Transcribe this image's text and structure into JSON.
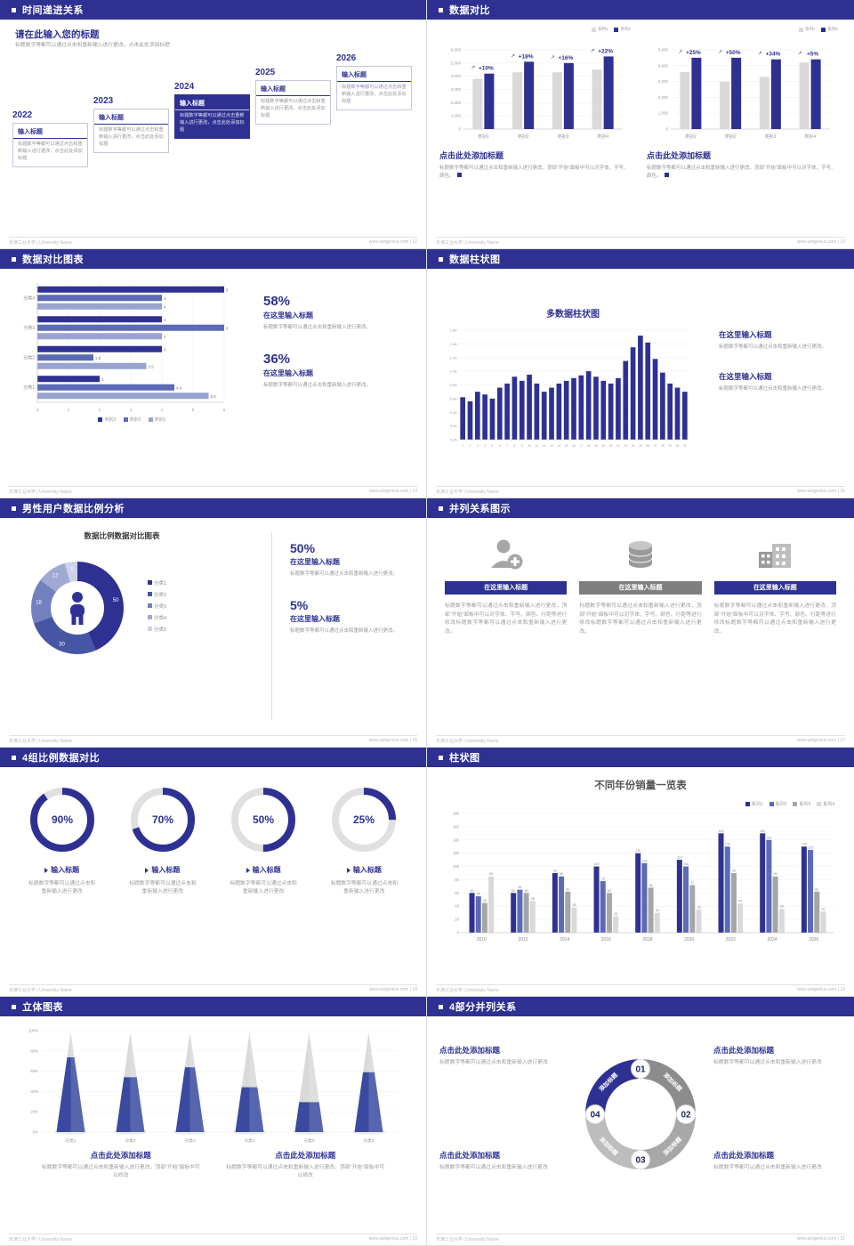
{
  "colors": {
    "primary": "#2e3192",
    "navy_dark": "#1f2a63",
    "mid_blue": "#5b6bb5",
    "light_blue": "#98a3cf",
    "gray_bar": "#d9d9d9",
    "mid_gray": "#a6a6a6",
    "cone_blue": "#3a4aa0",
    "pie_palette": [
      "#2e3192",
      "#4656a5",
      "#7280bd",
      "#9fa9d2",
      "#ccd2e8"
    ],
    "ring4_palette": [
      "#2e3192",
      "#8c8c8c",
      "#a8a8a8",
      "#bdbdbd"
    ]
  },
  "footer": {
    "org": "天津工业大学 | University Name",
    "site": "www.aotgenius.com",
    "sep": "|"
  },
  "slide1": {
    "page": "12",
    "title": "时间递进关系",
    "heading": "请在此输入您的标题",
    "desc": "标题数字等都可以通过点击和重新输入进行更改，点击此处添加标题",
    "items": [
      {
        "year": "2022",
        "label": "输入标题",
        "text": "标题数字等都可以通过点击和重新输入进行更改，点击此处添加标题"
      },
      {
        "year": "2023",
        "label": "输入标题",
        "text": "标题数字等都可以通过点击和重新输入进行更改，点击此处添加标题"
      },
      {
        "year": "2024",
        "label": "输入标题",
        "text": "标题数字等都可以通过点击重新输入进行更改，点击此处添加标题"
      },
      {
        "year": "2025",
        "label": "输入标题",
        "text": "标题数字等都可以通过点击和重新输入进行更改，点击此处添加标题"
      },
      {
        "year": "2026",
        "label": "输入标题",
        "text": "标题数字等都可以通过点击和重新输入进行更改，点击此处添加标题"
      }
    ]
  },
  "slide2": {
    "page": "13",
    "title": "数据对比",
    "chart_data": [
      {
        "type": "bar",
        "legend": [
          "系列1",
          "系列2"
        ],
        "categories": [
          "类别1",
          "类别2",
          "类别3",
          "类别4"
        ],
        "series": [
          {
            "name": "系列1",
            "values": [
              3800,
              4300,
              4300,
              4500
            ]
          },
          {
            "name": "系列2",
            "values": [
              4200,
              5100,
              5000,
              5500
            ]
          }
        ],
        "labels": [
          "+10%",
          "+18%",
          "+16%",
          "+22%"
        ],
        "ylim": [
          0,
          6000
        ],
        "yticks": [
          "6,000",
          "5,000",
          "4,000",
          "3,000",
          "2,000",
          "1,000",
          "0"
        ]
      },
      {
        "type": "bar",
        "legend": [
          "系列1",
          "系列2"
        ],
        "categories": [
          "类别1",
          "类别2",
          "类别3",
          "类别4"
        ],
        "series": [
          {
            "name": "系列1",
            "values": [
              3600,
              3000,
              3300,
              4200
            ]
          },
          {
            "name": "系列2",
            "values": [
              4500,
              4500,
              4400,
              4400
            ]
          }
        ],
        "labels": [
          "+25%",
          "+50%",
          "+34%",
          "+5%"
        ],
        "ylim": [
          0,
          5000
        ],
        "yticks": [
          "5,000",
          "4,000",
          "3,000",
          "2,000",
          "1,000",
          "0"
        ]
      }
    ],
    "blocks": [
      {
        "heading": "点击此处添加标题",
        "desc": "标题数字等都可以通过点击和重新输入进行更改，顶部“开始”面板中可以对字体、字号、颜色。"
      },
      {
        "heading": "点击此处添加标题",
        "desc": "标题数字等都可以通过点击和重新输入进行更改，顶部“开始”面板中可以对字体、字号、颜色。"
      }
    ]
  },
  "slide3": {
    "page": "14",
    "title": "数据对比图表",
    "chart": {
      "type": "bar-horizontal",
      "categories": [
        "分类4",
        "分类3",
        "分类2",
        "分类1"
      ],
      "series": [
        {
          "name": "类别3",
          "values": [
            6,
            4,
            4,
            2
          ]
        },
        {
          "name": "类别2",
          "values": [
            4,
            6,
            1.8,
            4.4
          ]
        },
        {
          "name": "类别1",
          "values": [
            4,
            4,
            3.5,
            5.5
          ]
        }
      ],
      "xlim": [
        0,
        6
      ],
      "xticks": [
        "0",
        "1",
        "2",
        "3",
        "4",
        "5",
        "6"
      ]
    },
    "stats": [
      {
        "pct": "58%",
        "heading": "在这里输入标题",
        "desc": "标题数字等都可以通过点击和重新输入进行更改。"
      },
      {
        "pct": "36%",
        "heading": "在这里输入标题",
        "desc": "标题数字等都可以通过点击和重新输入进行更改。"
      }
    ]
  },
  "slide4": {
    "page": "15",
    "title": "数据柱状图",
    "chart": {
      "type": "bar",
      "title": "多数据柱状图",
      "x": [
        "1",
        "2",
        "3",
        "4",
        "5",
        "6",
        "7",
        "8",
        "9",
        "10",
        "11",
        "12",
        "13",
        "14",
        "15",
        "16",
        "17",
        "18",
        "19",
        "20",
        "21",
        "22",
        "23",
        "24",
        "25",
        "26",
        "27",
        "28",
        "29",
        "30",
        "31"
      ],
      "values": [
        620,
        560,
        700,
        660,
        600,
        760,
        820,
        920,
        860,
        950,
        820,
        700,
        760,
        820,
        860,
        900,
        940,
        1000,
        920,
        860,
        820,
        900,
        1150,
        1350,
        1520,
        1420,
        1180,
        980,
        820,
        760,
        700
      ],
      "ylim": [
        0,
        1600
      ],
      "yticks": [
        "1.6K",
        "1.4K",
        "1.2K",
        "1.0K",
        "0.8K",
        "0.6K",
        "0.4K",
        "0.2K",
        "0.0K"
      ]
    },
    "blocks": [
      {
        "heading": "在这里输入标题",
        "desc": "标题数字等都可以通过点击和重新输入进行更改。"
      },
      {
        "heading": "在这里输入标题",
        "desc": "标题数字等都可以通过点击和重新输入进行更改。"
      }
    ]
  },
  "slide5": {
    "page": "16",
    "title": "男性用户数据比例分析",
    "chart_title": "数据比例数据对比图表",
    "chart": {
      "type": "pie",
      "labels": [
        "分类1",
        "分类2",
        "分类3",
        "分类4",
        "分类5"
      ],
      "values": [
        50,
        30,
        18,
        12,
        5
      ]
    },
    "stats": [
      {
        "pct": "50%",
        "heading": "在这里输入标题",
        "desc": "标题数字等都可以通过点击和重新输入进行更改。"
      },
      {
        "pct": "5%",
        "heading": "在这里输入标题",
        "desc": "标题数字等都可以通过点击和重新输入进行更改。"
      }
    ]
  },
  "slide6": {
    "page": "17",
    "title": "并列关系图示",
    "items": [
      {
        "icon": "nurse-icon",
        "button": "在这里输入标题",
        "desc": "标题数字等都可以通过点击和重新输入进行更改，顶部“开始”面板中可以对字体、字号、颜色、行距等进行修改标题数字等都可以通过点击和重新输入进行更改。"
      },
      {
        "icon": "database-icon",
        "button": "在这里输入标题",
        "desc": "标题数字等都可以通过点击和重新输入进行更改，顶部“开始”面板中可以对字体、字号、颜色、行距等进行修改标题数字等都可以通过点击和重新输入进行更改。"
      },
      {
        "icon": "factory-icon",
        "button": "在这里输入标题",
        "desc": "标题数字等都可以通过点击和重新输入进行更改，顶部“开始”面板中可以对字体、字号、颜色、行距等进行修改标题数字等都可以通过点击和重新输入进行更改。"
      }
    ]
  },
  "slide7": {
    "page": "18",
    "title": "4组比例数据对比",
    "items": [
      {
        "pct": 90,
        "pct_label": "90%",
        "heading": "输入标题",
        "desc": "标题数字等都可以通过点击和重新输入进行更改"
      },
      {
        "pct": 70,
        "pct_label": "70%",
        "heading": "输入标题",
        "desc": "标题数字等都可以通过点击和重新输入进行更改"
      },
      {
        "pct": 50,
        "pct_label": "50%",
        "heading": "输入标题",
        "desc": "标题数字等都可以通过点击和重新输入进行更改"
      },
      {
        "pct": 25,
        "pct_label": "25%",
        "heading": "输入标题",
        "desc": "标题数字等都可以通过点击和重新输入进行更改"
      }
    ]
  },
  "slide8": {
    "page": "19",
    "title": "柱状图",
    "chart": {
      "type": "bar",
      "title": "不同年份销量一览表",
      "categories": [
        "2010",
        "2012",
        "2014",
        "2016",
        "2018",
        "2020",
        "2022",
        "2024",
        "2026"
      ],
      "series": [
        {
          "name": "系列1",
          "values": [
            60,
            60,
            90,
            100,
            120,
            110,
            150,
            150,
            130
          ]
        },
        {
          "name": "系列2",
          "values": [
            55,
            65,
            85,
            78,
            105,
            100,
            130,
            140,
            125
          ]
        },
        {
          "name": "系列3",
          "values": [
            45,
            60,
            62,
            60,
            68,
            72,
            90,
            85,
            62
          ]
        },
        {
          "name": "系列4",
          "values": [
            85,
            48,
            38,
            25,
            30,
            35,
            44,
            36,
            32
          ]
        }
      ],
      "ylim": [
        0,
        180
      ],
      "yticks": [
        "0",
        "20",
        "40",
        "60",
        "80",
        "100",
        "120",
        "140",
        "160",
        "180"
      ]
    }
  },
  "slide9": {
    "page": "20",
    "title": "立体图表",
    "chart": {
      "type": "cone",
      "categories": [
        "分类1",
        "分类2",
        "分类3",
        "分类4",
        "分类5",
        "分类6"
      ],
      "values": [
        75,
        55,
        65,
        45,
        30,
        60
      ],
      "yticks": [
        "100%",
        "80%",
        "60%",
        "40%",
        "20%",
        "0%"
      ]
    },
    "blocks": [
      {
        "heading": "点击此处添加标题",
        "desc": "标题数字等都可以通过点击和重新输入进行更改，顶部“开始”面板中可以修改"
      },
      {
        "heading": "点击此处添加标题",
        "desc": "标题数字等都可以通过点击和重新输入进行更改，顶部“开始”面板中可以修改"
      }
    ]
  },
  "slide10": {
    "page": "21",
    "title": "4部分并列关系",
    "segments": [
      "添加标题",
      "添加标题",
      "添加标题",
      "添加标题"
    ],
    "numbers": [
      "01",
      "02",
      "03",
      "04"
    ],
    "blocks": [
      {
        "heading": "点击此处添加标题",
        "desc": "标题数字等都可以通过点击和重新输入进行更改"
      },
      {
        "heading": "点击此处添加标题",
        "desc": "标题数字等都可以通过点击和重新输入进行更改"
      },
      {
        "heading": "点击此处添加标题",
        "desc": "标题数字等都可以通过点击和重新输入进行更改"
      },
      {
        "heading": "点击此处添加标题",
        "desc": "标题数字等都可以通过点击和重新输入进行更改"
      }
    ]
  }
}
